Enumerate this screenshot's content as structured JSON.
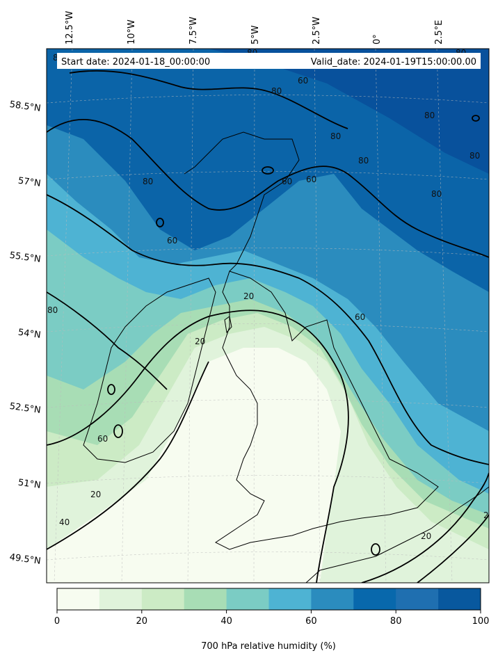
{
  "header": {
    "start_date": "Start date: 2024-01-18_00:00:00",
    "valid_date": "Valid_date: 2024-01-19T15:00:00.00"
  },
  "longitude_labels": [
    "12.5°W",
    "10°W",
    "7.5°W",
    "5°W",
    "2.5°W",
    "0°",
    "2.5°E"
  ],
  "latitude_labels": [
    "58.5°N",
    "57°N",
    "55.5°N",
    "54°N",
    "52.5°N",
    "51°N",
    "49.5°N"
  ],
  "contour_labels": [
    "80",
    "80",
    "60",
    "80",
    "80",
    "80",
    "80",
    "80",
    "60",
    "60",
    "60",
    "80",
    "80",
    "20",
    "80",
    "60",
    "80",
    "60",
    "20",
    "20",
    "40",
    "20",
    "20"
  ],
  "colorbar": {
    "label": "700 hPa relative humidity (%)",
    "ticks": [
      "0",
      "20",
      "40",
      "60",
      "80",
      "100"
    ],
    "colors": [
      "#f7fcf0",
      "#e0f3db",
      "#ccebc5",
      "#a8ddb5",
      "#7bccc4",
      "#4eb3d3",
      "#2b8cbe",
      "#0868ac",
      "#1f6fb0",
      "#08589e"
    ]
  },
  "chart_data": {
    "type": "heatmap",
    "variable": "700 hPa relative humidity (%)",
    "range": [
      0,
      100
    ],
    "levels": [
      0,
      10,
      20,
      30,
      40,
      50,
      60,
      70,
      80,
      90,
      100
    ],
    "contour_levels": [
      20,
      40,
      60,
      80
    ]
  }
}
